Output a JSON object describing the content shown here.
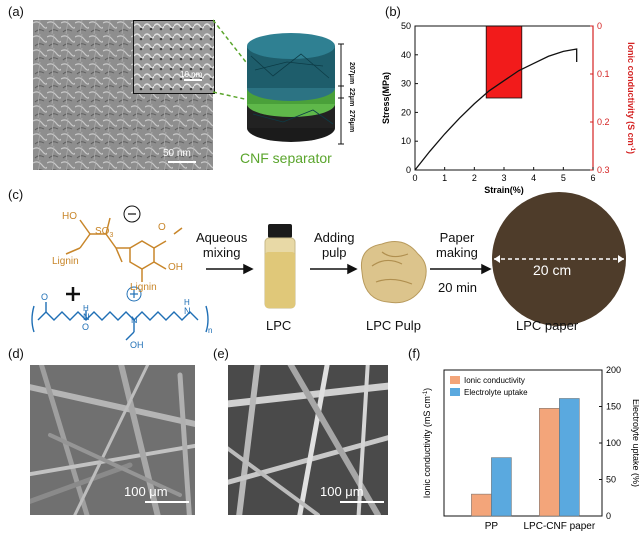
{
  "panel_a": {
    "label": "(a)",
    "main_scale": "50 nm",
    "inset_scale": "10 nm",
    "thicknesses": [
      "207μm",
      "22μm",
      "276μm"
    ],
    "caption": "CNF separator",
    "colors": {
      "top": "#1e5d6b",
      "middle": "#5fb84a",
      "bottom": "#1b1b1b",
      "caption": "#5aa52c"
    }
  },
  "panel_b": {
    "label": "(b)",
    "chart_data": {
      "type": "line",
      "xlabel": "Strain(%)",
      "ylabel": "Stress(MPa)",
      "ylabel_right": "Ionic conductivity (S cm",
      "ylabel_right_sup": "-1",
      "ylabel_right_tail": ")",
      "xlim": [
        0,
        6
      ],
      "ylim": [
        0,
        50
      ],
      "ylim_right": [
        0.3,
        0
      ],
      "xticks": [
        "0",
        "1",
        "2",
        "3",
        "4",
        "5",
        "6"
      ],
      "yticks": [
        "0",
        "10",
        "20",
        "30",
        "40",
        "50"
      ],
      "yticks_right": [
        "0.3",
        "0.2",
        "0.1",
        "0"
      ],
      "series": [
        {
          "x": [
            0,
            0.5,
            1,
            1.5,
            2,
            2.5,
            3,
            3.5,
            4,
            4.5,
            5,
            5.45,
            5.45
          ],
          "y": [
            0,
            6.5,
            12.5,
            18,
            23,
            27.5,
            31,
            34.5,
            37,
            39.5,
            41.2,
            42,
            37.5
          ]
        }
      ],
      "bar": {
        "x_range": [
          2.4,
          3.6
        ],
        "value": 0.15
      },
      "colors": {
        "curve": "#111111",
        "bar": "#f21b1b",
        "right_axis": "#d42222"
      }
    }
  },
  "panel_c": {
    "label": "(c)",
    "lignin1": "Lignin",
    "lignin2": "Lignin",
    "ho": "HO",
    "oh": "OH",
    "so3": "SO",
    "so3_sub": "3",
    "o_methoxy": "O",
    "minus": "−",
    "plus": "+",
    "poly_o1": "O",
    "poly_o2": "O",
    "poly_h1": "H",
    "poly_n1": "N",
    "poly_n2": "N",
    "poly_h2": "H",
    "poly_n3": "N",
    "poly_oh": "OH",
    "poly_sub": "n",
    "poly_plus": "+",
    "step1": [
      "Aqueous",
      "mixing"
    ],
    "step2": [
      "Adding",
      "pulp"
    ],
    "step3": [
      "Paper",
      "making",
      "20 min"
    ],
    "product1": "LPC",
    "product2": "LPC Pulp",
    "product3": "LPC paper",
    "diameter": "20 cm",
    "colors": {
      "lignin": "#c8862a",
      "polymer": "#1f6fb5"
    }
  },
  "panel_d": {
    "label": "(d)",
    "scale": "100 μm"
  },
  "panel_e": {
    "label": "(e)",
    "scale": "100 μm"
  },
  "panel_f": {
    "label": "(f)",
    "chart_data": {
      "type": "bar",
      "categories": [
        "PP",
        "LPC-CNF paper"
      ],
      "ylabel": "Ionic conductivity  (mS cm",
      "ylabel_sup": "-1",
      "ylabel_tail": ")",
      "ylabel_right": "Electrolyte uptake (%)",
      "series": [
        {
          "name": "Ionic conductivity",
          "values": [
            0.6,
            2.95
          ],
          "axis": "left"
        },
        {
          "name": "Electrolyte uptake",
          "values": [
            80,
            161
          ],
          "axis": "right"
        }
      ],
      "ylim": [
        0,
        4
      ],
      "ylim_right": [
        0,
        200
      ],
      "yticks_right": [
        "0",
        "50",
        "100",
        "150",
        "200"
      ],
      "colors": {
        "Ionic conductivity": "#f3a57a",
        "Electrolyte uptake": "#5aa9df"
      }
    }
  }
}
